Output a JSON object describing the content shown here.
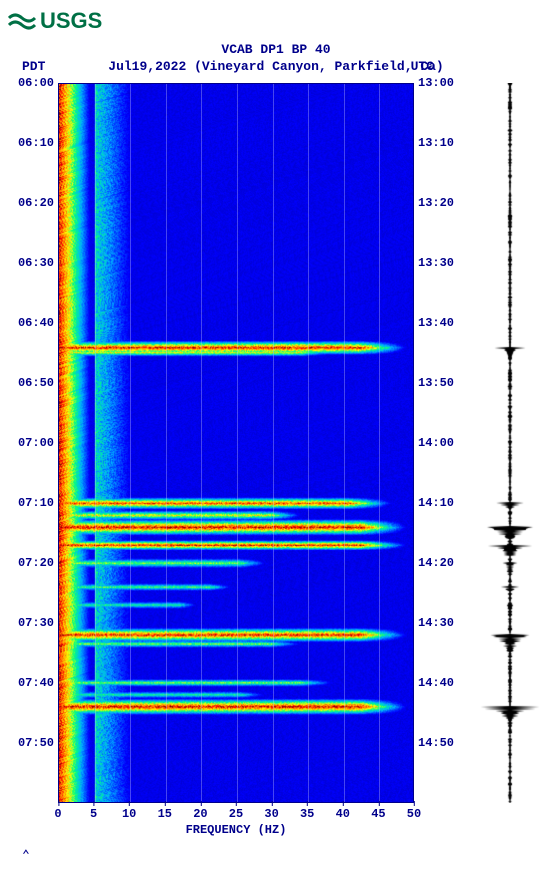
{
  "logo_text": "USGS",
  "title": "VCAB DP1 BP 40",
  "subtitle": "Jul19,2022 (Vineyard Canyon, Parkfield, Ca)",
  "left_tz": "PDT",
  "right_tz": "UTC",
  "colors": {
    "usgs_green": "#007045",
    "label_color": "#00008b",
    "spectro_bg": "#0000a8",
    "background": "#ffffff"
  },
  "y_axis": {
    "span_minutes": 120,
    "left_labels": [
      "06:00",
      "06:10",
      "06:20",
      "06:30",
      "06:40",
      "06:50",
      "07:00",
      "07:10",
      "07:20",
      "07:30",
      "07:40",
      "07:50"
    ],
    "right_labels": [
      "13:00",
      "13:10",
      "13:20",
      "13:30",
      "13:40",
      "13:50",
      "14:00",
      "14:10",
      "14:20",
      "14:30",
      "14:40",
      "14:50"
    ]
  },
  "x_axis": {
    "label": "FREQUENCY (HZ)",
    "ticks": [
      0,
      5,
      10,
      15,
      20,
      25,
      30,
      35,
      40,
      45,
      50
    ],
    "min": 0,
    "max": 50
  },
  "spectrogram": {
    "colormap_stops": [
      {
        "v": 0.0,
        "c": "#00007f"
      },
      {
        "v": 0.15,
        "c": "#0000ff"
      },
      {
        "v": 0.35,
        "c": "#00b0ff"
      },
      {
        "v": 0.5,
        "c": "#00ff80"
      },
      {
        "v": 0.65,
        "c": "#ffff00"
      },
      {
        "v": 0.8,
        "c": "#ff8000"
      },
      {
        "v": 0.92,
        "c": "#ff0000"
      },
      {
        "v": 1.0,
        "c": "#7f0000"
      }
    ],
    "low_freq_band": {
      "f0": 0,
      "f1": 5,
      "base_intensity": 0.9
    },
    "mid_freq_falloff": {
      "f0": 5,
      "f1": 12,
      "intensity": 0.45
    },
    "events": [
      {
        "t": 44,
        "width": 1.4,
        "f0": 0,
        "f1": 50,
        "intensity": 0.95
      },
      {
        "t": 44.8,
        "width": 0.8,
        "f0": 0,
        "f1": 40,
        "intensity": 0.7
      },
      {
        "t": 70,
        "width": 1.2,
        "f0": 0,
        "f1": 48,
        "intensity": 0.9
      },
      {
        "t": 72,
        "width": 1.0,
        "f0": 0,
        "f1": 35,
        "intensity": 0.7
      },
      {
        "t": 74,
        "width": 1.6,
        "f0": 0,
        "f1": 50,
        "intensity": 0.98
      },
      {
        "t": 77,
        "width": 1.0,
        "f0": 0,
        "f1": 50,
        "intensity": 0.95
      },
      {
        "t": 80,
        "width": 1.0,
        "f0": 0,
        "f1": 30,
        "intensity": 0.6
      },
      {
        "t": 84,
        "width": 0.8,
        "f0": 0,
        "f1": 25,
        "intensity": 0.55
      },
      {
        "t": 87,
        "width": 0.8,
        "f0": 0,
        "f1": 20,
        "intensity": 0.5
      },
      {
        "t": 92,
        "width": 1.4,
        "f0": 0,
        "f1": 50,
        "intensity": 0.95
      },
      {
        "t": 93.5,
        "width": 0.8,
        "f0": 0,
        "f1": 35,
        "intensity": 0.6
      },
      {
        "t": 100,
        "width": 0.8,
        "f0": 0,
        "f1": 40,
        "intensity": 0.6
      },
      {
        "t": 102,
        "width": 0.8,
        "f0": 0,
        "f1": 30,
        "intensity": 0.5
      },
      {
        "t": 104,
        "width": 1.6,
        "f0": 0,
        "f1": 50,
        "intensity": 0.98
      }
    ]
  },
  "seismogram": {
    "color": "#000000",
    "baseline_amp": 0.06,
    "events": [
      {
        "t": 44,
        "amp": 0.45,
        "dur": 2
      },
      {
        "t": 70,
        "amp": 0.35,
        "dur": 2
      },
      {
        "t": 74,
        "amp": 0.85,
        "dur": 3
      },
      {
        "t": 77,
        "amp": 0.7,
        "dur": 3
      },
      {
        "t": 80,
        "amp": 0.25,
        "dur": 2
      },
      {
        "t": 84,
        "amp": 0.2,
        "dur": 1.5
      },
      {
        "t": 87,
        "amp": 0.15,
        "dur": 1.5
      },
      {
        "t": 92,
        "amp": 0.75,
        "dur": 3
      },
      {
        "t": 104,
        "amp": 0.8,
        "dur": 3
      }
    ]
  },
  "caret": "⌃"
}
